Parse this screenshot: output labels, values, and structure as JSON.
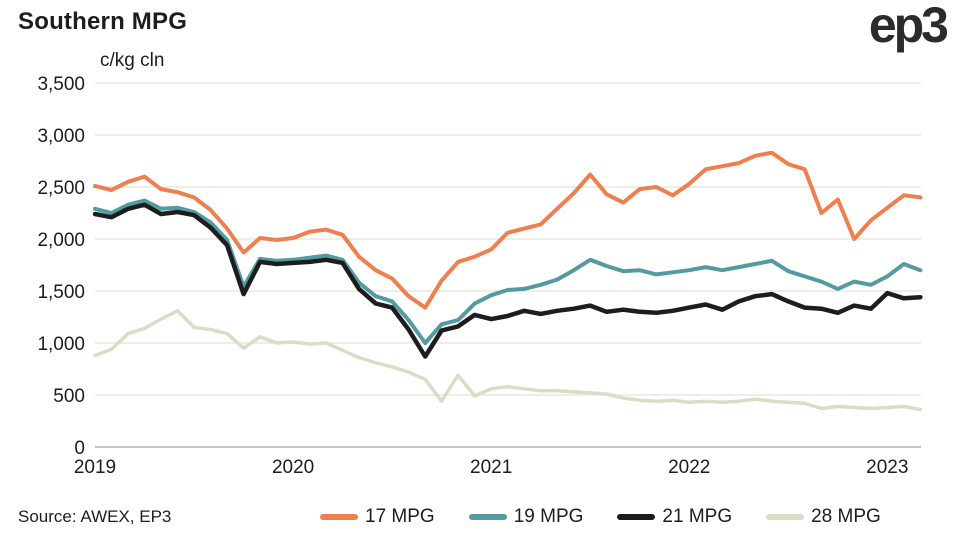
{
  "header": {
    "title": "Southern MPG",
    "logo_text": "ep3"
  },
  "footer": {
    "source": "Source: AWEX, EP3"
  },
  "colors": {
    "series_17": "#ef7f4e",
    "series_19": "#549aa1",
    "series_21": "#1d1d1d",
    "series_28": "#dcdcc6",
    "gridline": "#ece9dc",
    "zero_line": "#c6c6c6",
    "text": "#1d1d1d"
  },
  "chart_data": {
    "type": "line",
    "title": "Southern MPG",
    "unit_label": "c/kg cln",
    "xlabel": "",
    "ylabel": "c/kg cln",
    "ylim": [
      0,
      3500
    ],
    "ytick_step": 500,
    "xticks": [
      2019,
      2020,
      2021,
      2022,
      2023
    ],
    "x_range": [
      2019.0,
      2023.17
    ],
    "grid": "horizontal",
    "legend_position": "bottom",
    "x": [
      2019.0,
      2019.083,
      2019.167,
      2019.25,
      2019.333,
      2019.417,
      2019.5,
      2019.583,
      2019.667,
      2019.75,
      2019.833,
      2019.917,
      2020.0,
      2020.083,
      2020.167,
      2020.25,
      2020.333,
      2020.417,
      2020.5,
      2020.583,
      2020.667,
      2020.75,
      2020.833,
      2020.917,
      2021.0,
      2021.083,
      2021.167,
      2021.25,
      2021.333,
      2021.417,
      2021.5,
      2021.583,
      2021.667,
      2021.75,
      2021.833,
      2021.917,
      2022.0,
      2022.083,
      2022.167,
      2022.25,
      2022.333,
      2022.417,
      2022.5,
      2022.583,
      2022.667,
      2022.75,
      2022.833,
      2022.917,
      2023.0,
      2023.083,
      2023.167
    ],
    "series": [
      {
        "name": "17 MPG",
        "color": "#ef7f4e",
        "stroke_width": 4,
        "values": [
          2510,
          2470,
          2550,
          2600,
          2480,
          2450,
          2400,
          2280,
          2100,
          1870,
          2010,
          1990,
          2010,
          2070,
          2090,
          2040,
          1830,
          1700,
          1620,
          1450,
          1340,
          1600,
          1780,
          1830,
          1900,
          2060,
          2100,
          2140,
          2290,
          2440,
          2620,
          2430,
          2350,
          2480,
          2500,
          2420,
          2530,
          2670,
          2700,
          2730,
          2800,
          2830,
          2720,
          2670,
          2250,
          2380,
          2000,
          2180,
          2300,
          2420,
          2400
        ]
      },
      {
        "name": "19 MPG",
        "color": "#549aa1",
        "stroke_width": 4,
        "values": [
          2290,
          2250,
          2330,
          2370,
          2290,
          2300,
          2260,
          2160,
          1990,
          1540,
          1810,
          1790,
          1800,
          1820,
          1840,
          1800,
          1580,
          1450,
          1400,
          1220,
          1000,
          1180,
          1220,
          1380,
          1460,
          1510,
          1520,
          1560,
          1610,
          1700,
          1800,
          1740,
          1690,
          1700,
          1660,
          1680,
          1700,
          1730,
          1700,
          1730,
          1760,
          1790,
          1690,
          1640,
          1590,
          1520,
          1590,
          1560,
          1640,
          1760,
          1700
        ]
      },
      {
        "name": "21 MPG",
        "color": "#1d1d1d",
        "stroke_width": 4.5,
        "values": [
          2240,
          2210,
          2290,
          2330,
          2240,
          2260,
          2230,
          2110,
          1940,
          1470,
          1780,
          1760,
          1770,
          1780,
          1800,
          1770,
          1520,
          1380,
          1340,
          1130,
          870,
          1120,
          1160,
          1270,
          1230,
          1260,
          1310,
          1280,
          1310,
          1330,
          1360,
          1300,
          1320,
          1300,
          1290,
          1310,
          1340,
          1370,
          1320,
          1400,
          1450,
          1470,
          1400,
          1340,
          1330,
          1290,
          1360,
          1330,
          1480,
          1430,
          1440
        ]
      },
      {
        "name": "28 MPG",
        "color": "#dcdcc6",
        "stroke_width": 3.5,
        "values": [
          880,
          940,
          1090,
          1140,
          1230,
          1310,
          1150,
          1130,
          1090,
          950,
          1060,
          1000,
          1010,
          990,
          1000,
          930,
          860,
          810,
          770,
          720,
          650,
          440,
          690,
          490,
          560,
          580,
          560,
          540,
          540,
          530,
          520,
          510,
          470,
          450,
          440,
          450,
          430,
          440,
          430,
          440,
          460,
          440,
          430,
          420,
          370,
          390,
          380,
          370,
          380,
          390,
          360
        ]
      }
    ]
  }
}
